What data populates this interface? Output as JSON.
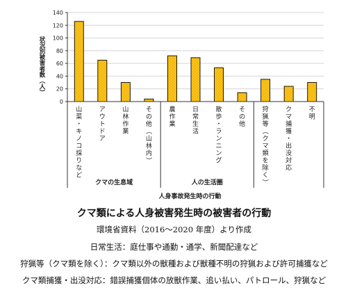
{
  "chart_data": {
    "type": "bar",
    "ylabel": "状況別被害者数（人）",
    "xlabel": "人身事故発生時の行動",
    "ylim": [
      0,
      140
    ],
    "yticks": [
      0,
      20,
      40,
      60,
      80,
      100,
      120,
      140
    ],
    "grid": true,
    "bar_color": "#F5B700",
    "categories": [
      "山菜・キノコ採りなど",
      "アウトドア",
      "山林作業",
      "その他（山林内）",
      "農作業",
      "日常生活",
      "散歩・ランニング",
      "その他",
      "狩猟等（クマ類を除く）",
      "クマ捕獲・出没対応",
      "不明"
    ],
    "values": [
      126,
      65,
      30,
      4,
      72,
      69,
      53,
      14,
      35,
      24,
      30
    ],
    "groups": [
      {
        "label": "クマの生息域",
        "start": 0,
        "end": 3
      },
      {
        "label": "人の生活圏",
        "start": 4,
        "end": 7
      },
      {
        "label": "",
        "start": 8,
        "end": 10
      }
    ]
  },
  "caption": {
    "title": "クマ類による人身被害発生時の被害者の行動",
    "source": "環境省資料（2016〜2020 年度）より作成",
    "note1": "日常生活：庭仕事や通勤・通学、新聞配達など",
    "note2": "狩猟等（クマ類を除く）：クマ類以外の獣種および獣種不明の狩猟および許可捕獲など",
    "note3": "クマ類捕獲・出没対応：錯誤捕獲個体の放獣作業、追い払い、パトロール、狩猟など"
  }
}
